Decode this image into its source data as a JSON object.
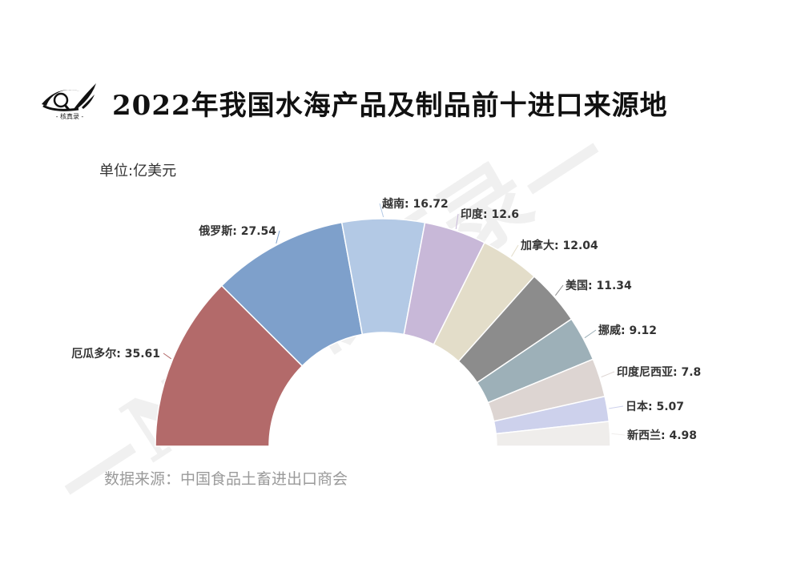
{
  "header": {
    "title": "2022年我国水海产品及制品前十进口来源地",
    "logo_caption": "- 核真录 -"
  },
  "unit_label": "单位:亿美元",
  "source_label": "数据来源：中国食品土畜进出口商会",
  "watermark_text": "—NJU核真录—",
  "chart_data": {
    "type": "pie",
    "variant": "half-donut",
    "title": "2022年我国水海产品及制品前十进口来源地",
    "unit": "亿美元",
    "categories": [
      "厄瓜多尔",
      "俄罗斯",
      "越南",
      "印度",
      "加拿大",
      "美国",
      "挪威",
      "印度尼西亚",
      "日本",
      "新西兰"
    ],
    "values": [
      35.61,
      27.54,
      16.72,
      12.6,
      12.04,
      11.34,
      9.12,
      7.8,
      5.07,
      4.98
    ],
    "colors": [
      "#b36a6a",
      "#7ea0cb",
      "#b3c9e5",
      "#c8b8d8",
      "#e3ddc9",
      "#8c8c8c",
      "#9db0b8",
      "#ddd5d2",
      "#cdd1ec",
      "#efedeb"
    ],
    "labels": [
      "厄瓜多尔: 35.61",
      "俄罗斯: 27.54",
      "越南: 16.72",
      "印度: 12.6",
      "加拿大: 12.04",
      "美国: 11.34",
      "挪威: 9.12",
      "印度尼西亚: 7.8",
      "日本: 5.07",
      "新西兰: 4.98"
    ],
    "source": "中国食品土畜进出口商会",
    "legend": "none (inline labels)"
  }
}
